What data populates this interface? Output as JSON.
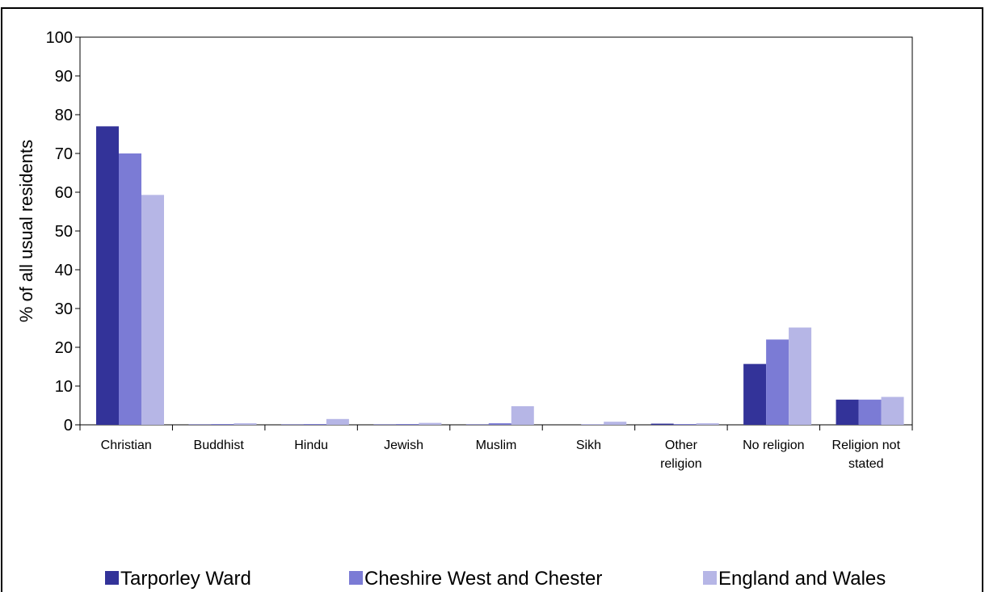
{
  "chart_data": {
    "type": "bar",
    "ylabel": "% of all usual residents",
    "xlabel": "",
    "ylim": [
      0,
      100
    ],
    "yticks": [
      0,
      10,
      20,
      30,
      40,
      50,
      60,
      70,
      80,
      90,
      100
    ],
    "grid": false,
    "legend_position": "bottom",
    "categories": [
      [
        "Christian"
      ],
      [
        "Buddhist"
      ],
      [
        "Hindu"
      ],
      [
        "Jewish"
      ],
      [
        "Muslim"
      ],
      [
        "Sikh"
      ],
      [
        "Other",
        "religion"
      ],
      [
        "No religion"
      ],
      [
        "Religion not",
        "stated"
      ]
    ],
    "series": [
      {
        "name": "Tarporley Ward",
        "color": "#333399",
        "values": [
          77.0,
          0.1,
          0.1,
          0.1,
          0.1,
          0.0,
          0.3,
          15.7,
          6.5
        ]
      },
      {
        "name": "Cheshire West and Chester",
        "color": "#7b7bd5",
        "values": [
          70.0,
          0.2,
          0.2,
          0.2,
          0.4,
          0.1,
          0.2,
          22.0,
          6.5
        ]
      },
      {
        "name": "England and Wales",
        "color": "#b6b6e6",
        "values": [
          59.3,
          0.4,
          1.5,
          0.5,
          4.8,
          0.8,
          0.4,
          25.1,
          7.2
        ]
      }
    ]
  }
}
